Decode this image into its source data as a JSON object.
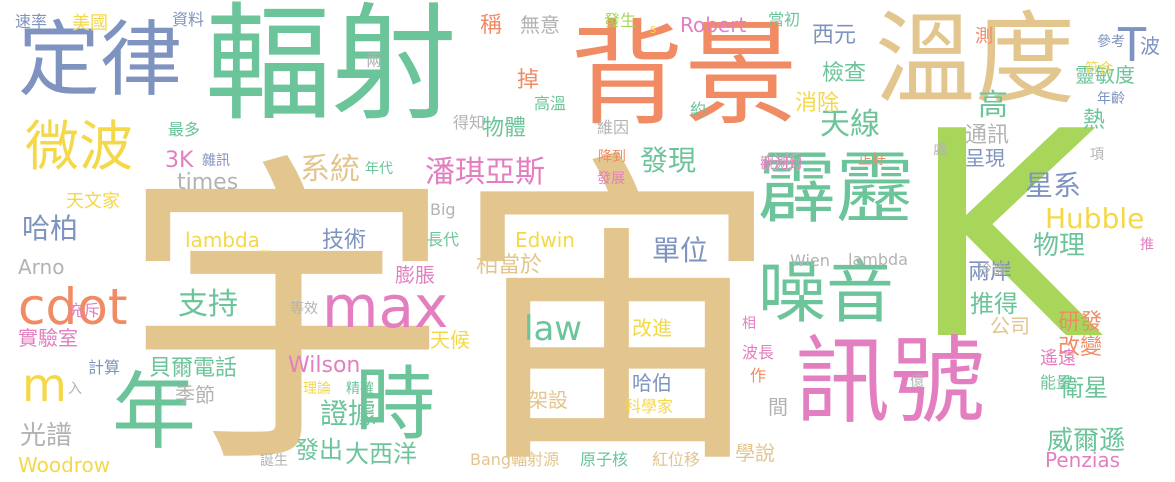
{
  "colors": {
    "tan": "#E3C58E",
    "green": "#6CC49A",
    "blue": "#7E93BF",
    "orange": "#F08B64",
    "pink": "#E37FC1",
    "lime": "#A7D65A",
    "yellow": "#F5D84A",
    "gray": "#B3B3B3"
  },
  "words": [
    {
      "text": "宇宙",
      "color": "tan"
    },
    {
      "text": "K",
      "color": "lime"
    },
    {
      "text": "輻射",
      "color": "green"
    },
    {
      "text": "背景",
      "color": "orange"
    },
    {
      "text": "溫度",
      "color": "tan"
    },
    {
      "text": "定律",
      "color": "blue"
    },
    {
      "text": "訊號",
      "color": "pink"
    },
    {
      "text": "年",
      "color": "green"
    },
    {
      "text": "時",
      "color": "green"
    },
    {
      "text": "霹靂",
      "color": "green"
    },
    {
      "text": "噪音",
      "color": "green"
    },
    {
      "text": "max",
      "color": "pink"
    },
    {
      "text": "cdot",
      "color": "orange"
    },
    {
      "text": "微波",
      "color": "yellow"
    },
    {
      "text": "m",
      "color": "yellow"
    },
    {
      "text": "T",
      "color": "blue"
    },
    {
      "text": "天線",
      "color": "green"
    },
    {
      "text": "潘琪亞斯",
      "color": "pink"
    },
    {
      "text": "系統",
      "color": "tan"
    },
    {
      "text": "發現",
      "color": "green"
    },
    {
      "text": "星系",
      "color": "blue"
    },
    {
      "text": "哈柏",
      "color": "blue"
    },
    {
      "text": "Hubble",
      "color": "yellow"
    },
    {
      "text": "物理",
      "color": "green"
    },
    {
      "text": "單位",
      "color": "blue"
    },
    {
      "text": "支持",
      "color": "green"
    },
    {
      "text": "law",
      "color": "green"
    },
    {
      "text": "證據",
      "color": "green"
    },
    {
      "text": "威爾遜",
      "color": "green"
    },
    {
      "text": "衛星",
      "color": "green"
    },
    {
      "text": "光譜",
      "color": "gray"
    },
    {
      "text": "Woodrow",
      "color": "yellow"
    },
    {
      "text": "Penzias",
      "color": "pink"
    },
    {
      "text": "改進",
      "color": "yellow"
    },
    {
      "text": "哈伯",
      "color": "blue"
    },
    {
      "text": "架設",
      "color": "tan"
    },
    {
      "text": "貝爾電話",
      "color": "green"
    },
    {
      "text": "實驗室",
      "color": "pink"
    },
    {
      "text": "大西洋",
      "color": "green"
    },
    {
      "text": "發出",
      "color": "green"
    },
    {
      "text": "學說",
      "color": "tan"
    },
    {
      "text": "Robert",
      "color": "pink"
    },
    {
      "text": "Edwin",
      "color": "yellow"
    },
    {
      "text": "lambda_",
      "color": "yellow"
    },
    {
      "text": "技術",
      "color": "blue"
    },
    {
      "text": "相當於",
      "color": "tan"
    },
    {
      "text": "Wilson",
      "color": "pink"
    },
    {
      "text": "天候",
      "color": "yellow"
    },
    {
      "text": "季節",
      "color": "gray"
    },
    {
      "text": "推得",
      "color": "green"
    },
    {
      "text": "研發",
      "color": "orange"
    },
    {
      "text": "改變",
      "color": "orange"
    },
    {
      "text": "公司",
      "color": "tan"
    },
    {
      "text": "兩岸",
      "color": "blue"
    },
    {
      "text": "靈敏度",
      "color": "green"
    },
    {
      "text": "檢查",
      "color": "green"
    },
    {
      "text": "消除",
      "color": "yellow"
    },
    {
      "text": "物體",
      "color": "green"
    },
    {
      "text": "西元",
      "color": "blue"
    },
    {
      "text": "美國",
      "color": "yellow"
    },
    {
      "text": "無意",
      "color": "gray"
    },
    {
      "text": "掉",
      "color": "orange"
    },
    {
      "text": "稱",
      "color": "orange"
    },
    {
      "text": "times",
      "color": "gray"
    },
    {
      "text": "天文家",
      "color": "yellow"
    },
    {
      "text": "分析",
      "color": "gray"
    },
    {
      "text": "通訊",
      "color": "gray"
    },
    {
      "text": "呈現",
      "color": "blue"
    },
    {
      "text": "高",
      "color": "green"
    },
    {
      "text": "熱",
      "color": "green"
    },
    {
      "text": "3K",
      "color": "pink"
    },
    {
      "text": "速率",
      "color": "blue"
    },
    {
      "text": "資料",
      "color": "blue"
    },
    {
      "text": "發生",
      "color": "lime"
    },
    {
      "text": "當初",
      "color": "green"
    },
    {
      "text": "測",
      "color": "orange"
    },
    {
      "text": "參考",
      "color": "blue"
    },
    {
      "text": "波",
      "color": "blue"
    },
    {
      "text": "符合",
      "color": "yellow"
    },
    {
      "text": "年齡",
      "color": "blue"
    },
    {
      "text": "兩",
      "color": "gray"
    },
    {
      "text": "高溫",
      "color": "green"
    },
    {
      "text": "約",
      "color": "green"
    },
    {
      "text": "得知",
      "color": "gray"
    },
    {
      "text": "維因",
      "color": "gray"
    },
    {
      "text": "最多",
      "color": "green"
    },
    {
      "text": "雜訊",
      "color": "blue"
    },
    {
      "text": "年代",
      "color": "green"
    },
    {
      "text": "降到",
      "color": "orange"
    },
    {
      "text": "觀測到",
      "color": "pink"
    },
    {
      "text": "正好",
      "color": "orange"
    },
    {
      "text": "發展",
      "color": "pink"
    },
    {
      "text": "處",
      "color": "gray"
    },
    {
      "text": "項",
      "color": "gray"
    },
    {
      "text": "Big",
      "color": "gray"
    },
    {
      "text": "Arno",
      "color": "gray"
    },
    {
      "text": "長代",
      "color": "green"
    },
    {
      "text": "Wien",
      "color": "gray"
    },
    {
      "text": "lambda",
      "color": "gray"
    },
    {
      "text": "推",
      "color": "pink"
    },
    {
      "text": "充斥",
      "color": "pink"
    },
    {
      "text": "膨脹",
      "color": "pink"
    },
    {
      "text": "冷卻",
      "color": "gray"
    },
    {
      "text": "等效",
      "color": "gray"
    },
    {
      "text": "相",
      "color": "pink"
    },
    {
      "text": "計算",
      "color": "blue"
    },
    {
      "text": "理論",
      "color": "yellow"
    },
    {
      "text": "精確",
      "color": "green"
    },
    {
      "text": "作",
      "color": "orange"
    },
    {
      "text": "波長",
      "color": "pink"
    },
    {
      "text": "億",
      "color": "gray"
    },
    {
      "text": "遙遠",
      "color": "pink"
    },
    {
      "text": "能量",
      "color": "green"
    },
    {
      "text": "入",
      "color": "gray"
    },
    {
      "text": "科學家",
      "color": "yellow"
    },
    {
      "text": "間",
      "color": "gray"
    },
    {
      "text": "誕生",
      "color": "gray"
    },
    {
      "text": "Bang輻射源",
      "color": "tan"
    },
    {
      "text": "原子核",
      "color": "green"
    },
    {
      "text": "紅位移",
      "color": "tan"
    },
    {
      "text": "s",
      "color": "yellow"
    }
  ]
}
